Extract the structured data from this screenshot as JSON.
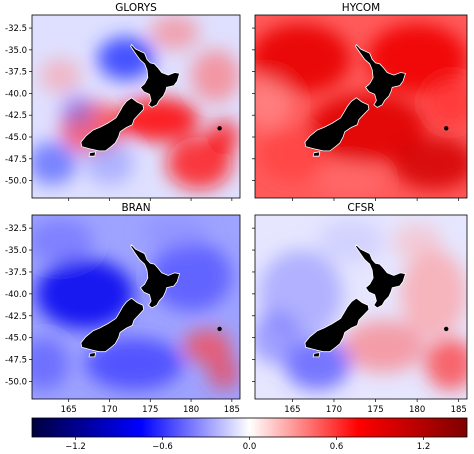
{
  "chart_data": {
    "type": "heatmap",
    "panels": [
      {
        "title": "GLORYS",
        "pattern": "mixed"
      },
      {
        "title": "HYCOM",
        "pattern": "warm"
      },
      {
        "title": "BRAN",
        "pattern": "cool"
      },
      {
        "title": "CFSR",
        "pattern": "mixed-cool"
      }
    ],
    "x_ticks": [
      "165",
      "170",
      "175",
      "180",
      "185"
    ],
    "x_tick_values": [
      165,
      170,
      175,
      180,
      185
    ],
    "xlim": [
      160.5,
      186.0
    ],
    "y_ticks": [
      "-32.5",
      "-35.0",
      "-37.5",
      "-40.0",
      "-42.5",
      "-45.0",
      "-47.5",
      "-50.0"
    ],
    "y_tick_values": [
      -32.5,
      -35.0,
      -37.5,
      -40.0,
      -42.5,
      -45.0,
      -47.5,
      -50.0
    ],
    "ylim": [
      -52.0,
      -31.0
    ],
    "colorbar": {
      "ticks": [
        "−1.2",
        "−0.6",
        "0.0",
        "0.6",
        "1.2"
      ],
      "tick_values": [
        -1.2,
        -0.6,
        0.0,
        0.6,
        1.2
      ],
      "range": [
        -1.5,
        1.5
      ],
      "colors": [
        "#00003f",
        "#0000ff",
        "#ffffff",
        "#ff0000",
        "#7f0000"
      ]
    },
    "land_color": "#000000",
    "grid": false
  }
}
